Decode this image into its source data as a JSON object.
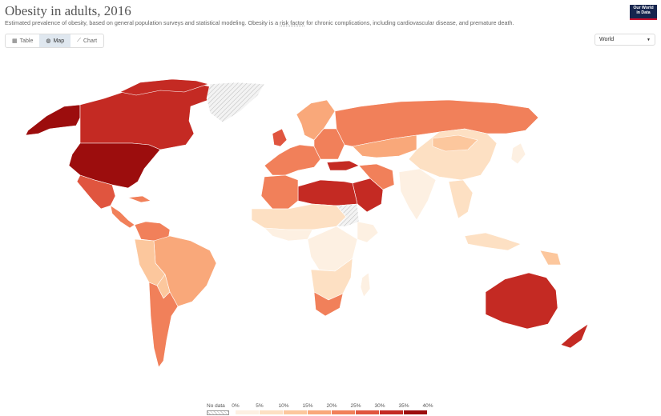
{
  "header": {
    "title": "Obesity in adults, 2016",
    "subtitle_before": "Estimated prevalence of obesity, based on general population surveys and statistical modeling. Obesity is a ",
    "subtitle_link": "risk factor",
    "subtitle_after": " for chronic complications, including cardiovascular disease, and premature death.",
    "logo_line1": "Our World",
    "logo_line2": "in Data"
  },
  "tabs": [
    {
      "label": "Table",
      "icon": "table-icon",
      "active": false
    },
    {
      "label": "Map",
      "icon": "globe-icon",
      "active": true
    },
    {
      "label": "Chart",
      "icon": "line-chart-icon",
      "active": false
    }
  ],
  "region_select": {
    "value": "World"
  },
  "legend": {
    "no_data_label": "No data",
    "ticks": [
      "0%",
      "5%",
      "10%",
      "15%",
      "20%",
      "25%",
      "30%",
      "35%",
      "40%"
    ],
    "colors": [
      "#fdf0e2",
      "#fde0c3",
      "#fcc79d",
      "#f9a87a",
      "#f1805a",
      "#e0553f",
      "#c42a23",
      "#9c0d0d"
    ]
  },
  "map_colors": {
    "bin1": "#fdf0e2",
    "bin2": "#fde0c3",
    "bin3": "#fcc79d",
    "bin4": "#f9a87a",
    "bin5": "#f1805a",
    "bin6": "#e0553f",
    "bin7": "#c42a23",
    "bin8": "#9c0d0d",
    "no_data": "#e6e6e6"
  }
}
